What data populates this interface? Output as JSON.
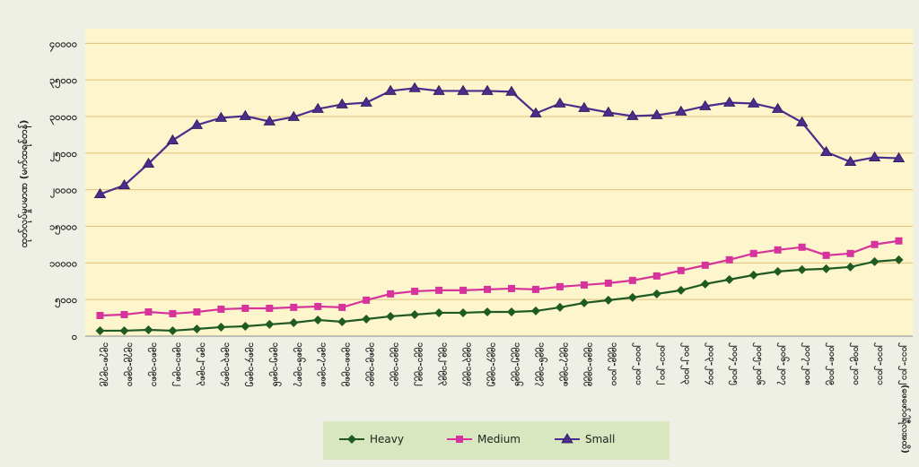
{
  "chart_data": {
    "type": "line",
    "y_label": "ထုတ်လုပ်မှုပမာဏ (မက်ထရစ်တန်)",
    "categories": [
      "၁၉၇၈-၁၉၇၉",
      "၁၉၇၉-၁၉၈၀",
      "၁၉၈၀-၁၉၈၁",
      "၁၉၈၁-၁၉၈၂",
      "၁၉၈၂-၁၉၈၃",
      "၁၉၈၃-၁၉၈၄",
      "၁၉၈၄-၁၉၈၅",
      "၁၉၈၅-၁၉၈၆",
      "၁၉၈၆-၁၉၈၇",
      "၁၉၈၇-၁၉၈၈",
      "၁၉၈၈-၁၉၈၉",
      "၁၉၈၉-၁၉၉၀",
      "၁၉၉၀-၁၉၉၁",
      "၁၉၉၁-၁၉၉၂",
      "၁၉၉၂-၁၉၉၃",
      "၁၉၉၃-၁၉၉၄",
      "၁၉၉၄-၁၉၉၅",
      "၁၉၉၅-၁၉၉၆",
      "၁၉၉၆-၁၉၉၇",
      "၁၉၉၇-၁၉၉၈",
      "၁၉၉၈-၁၉၉၉",
      "၁၉၉၉-၂၀၀၀",
      "၂၀၀၀-၂၀၀၁",
      "၂၀၀၁-၂၀၀၂",
      "၂၀၀၂-၂၀၀၃",
      "၂၀၀၃-၂၀၀၄",
      "၂၀၀၄-၂၀၀၅",
      "၂၀၀၅-၂၀၀၆",
      "၂၀၀၆-၂၀၀၇",
      "၂၀၀၇-၂၀၀၈",
      "၂၀၀၈-၂၀၀၉",
      "၂၀၀၉-၂၀၁၀",
      "၂၀၁၀-၂၀၁၁",
      "၂၀၁၁-၂၀၁၂(ဖေဖော်ဝါရီလအထိ)"
    ],
    "series": [
      {
        "name": "Heavy",
        "color": "#1e5a22",
        "marker": "diamond",
        "values": [
          740,
          740,
          860,
          740,
          980,
          1230,
          1350,
          1600,
          1840,
          2210,
          1960,
          2330,
          2700,
          2940,
          3190,
          3190,
          3310,
          3310,
          3440,
          3930,
          4540,
          4910,
          5280,
          5770,
          6260,
          7120,
          7730,
          8340,
          8830,
          9080,
          9200,
          9450,
          10180,
          10430
        ]
      },
      {
        "name": "Medium",
        "color": "#d6339c",
        "marker": "square",
        "values": [
          2820,
          2940,
          3310,
          3070,
          3310,
          3680,
          3800,
          3800,
          3930,
          4050,
          3930,
          4910,
          5770,
          6130,
          6260,
          6260,
          6380,
          6500,
          6380,
          6750,
          6990,
          7240,
          7610,
          8220,
          8960,
          9690,
          10430,
          11290,
          11780,
          12150,
          11040,
          11290,
          12520,
          13010
        ]
      },
      {
        "name": "Small",
        "color": "#4b2d8c",
        "marker": "triangle",
        "values": [
          19390,
          20600,
          23560,
          26750,
          28840,
          29820,
          30060,
          29330,
          29940,
          31040,
          31660,
          31900,
          33500,
          33870,
          33500,
          33500,
          33500,
          33380,
          30430,
          31780,
          31170,
          30550,
          30060,
          30180,
          30670,
          31410,
          31900,
          31780,
          31040,
          29200,
          25150,
          23800,
          24420,
          24300
        ]
      }
    ],
    "ylim": [
      0,
      42000
    ],
    "yticks": [
      {
        "value": 0,
        "label": "၀"
      },
      {
        "value": 5000,
        "label": "၅၀၀၀"
      },
      {
        "value": 10000,
        "label": "၁၀၀၀၀"
      },
      {
        "value": 15000,
        "label": "၁၅၀၀၀"
      },
      {
        "value": 20000,
        "label": "၂၀၀၀၀"
      },
      {
        "value": 25000,
        "label": "၂၅၀၀၀"
      },
      {
        "value": 30000,
        "label": "၃၀၀၀၀"
      },
      {
        "value": 35000,
        "label": "၃၅၀၀၀"
      },
      {
        "value": 40000,
        "label": "၄၀၀၀၀"
      }
    ],
    "grid": true
  }
}
